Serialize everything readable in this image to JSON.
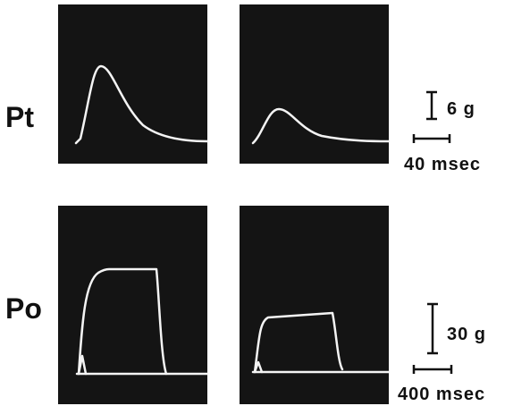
{
  "labels": {
    "top_row": "Pt",
    "bottom_row": "Po"
  },
  "scale_bars": {
    "top_force": "6 g",
    "top_time": "40 msec",
    "bottom_force": "30 g",
    "bottom_time": "400 msec"
  }
}
